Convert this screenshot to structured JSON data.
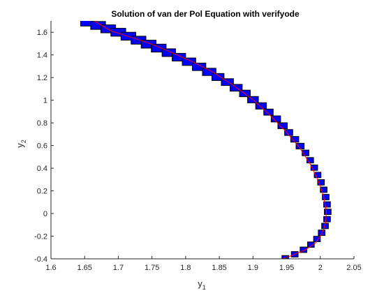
{
  "chart_data": {
    "type": "scatter",
    "title": "Solution of van der Pol Equation with verifyode",
    "xlabel": {
      "base": "y",
      "sub": "1"
    },
    "ylabel": {
      "base": "y",
      "sub": "2"
    },
    "xlim": [
      1.6,
      2.05
    ],
    "ylim": [
      -0.4,
      1.7
    ],
    "xticks": [
      "1.6",
      "1.65",
      "1.7",
      "1.75",
      "1.8",
      "1.85",
      "1.9",
      "1.95",
      "2",
      "2.05"
    ],
    "xtick_values": [
      1.6,
      1.65,
      1.7,
      1.75,
      1.8,
      1.85,
      1.9,
      1.95,
      2.0,
      2.05
    ],
    "yticks": [
      "-0.4",
      "-0.2",
      "0",
      "0.2",
      "0.4",
      "0.6",
      "0.8",
      "1",
      "1.2",
      "1.4",
      "1.6"
    ],
    "ytick_values": [
      -0.4,
      -0.2,
      0,
      0.2,
      0.4,
      0.6,
      0.8,
      1.0,
      1.2,
      1.4,
      1.6
    ],
    "grid": false,
    "colors": {
      "enclosure_fill": "#0000ff",
      "enclosure_edge": "#000000",
      "trajectory": "#ff0000",
      "axes": "#262626"
    },
    "series": [
      {
        "kind": "enclosure-boxes",
        "x": [
          1.655,
          1.67,
          1.685,
          1.7,
          1.715,
          1.73,
          1.745,
          1.76,
          1.775,
          1.79,
          1.805,
          1.82,
          1.835,
          1.848,
          1.862,
          1.875,
          1.888,
          1.9,
          1.912,
          1.923,
          1.934,
          1.944,
          1.953,
          1.962,
          1.97,
          1.978,
          1.985,
          1.991,
          1.996,
          2.001,
          2.005,
          2.008,
          2.01,
          2.011,
          2.01,
          2.007,
          2.002,
          1.995,
          1.986,
          1.975,
          1.962,
          1.948
        ],
        "y": [
          1.69,
          1.66,
          1.63,
          1.6,
          1.565,
          1.53,
          1.495,
          1.46,
          1.42,
          1.38,
          1.34,
          1.295,
          1.25,
          1.205,
          1.16,
          1.11,
          1.06,
          1.005,
          0.95,
          0.895,
          0.835,
          0.775,
          0.715,
          0.655,
          0.595,
          0.535,
          0.47,
          0.405,
          0.34,
          0.275,
          0.21,
          0.145,
          0.08,
          0.015,
          -0.05,
          -0.11,
          -0.17,
          -0.225,
          -0.275,
          -0.32,
          -0.36,
          -0.395
        ],
        "half_width": [
          0.011,
          0.011,
          0.011,
          0.011,
          0.011,
          0.011,
          0.011,
          0.011,
          0.01,
          0.01,
          0.01,
          0.01,
          0.01,
          0.009,
          0.009,
          0.009,
          0.008,
          0.008,
          0.008,
          0.007,
          0.007,
          0.007,
          0.006,
          0.006,
          0.006,
          0.005,
          0.005,
          0.005,
          0.005,
          0.005,
          0.005,
          0.005,
          0.005,
          0.005,
          0.005,
          0.005,
          0.005,
          0.005,
          0.005,
          0.005,
          0.005,
          0.005
        ],
        "half_height": [
          0.035,
          0.035,
          0.035,
          0.035,
          0.035,
          0.035,
          0.035,
          0.035,
          0.034,
          0.034,
          0.033,
          0.033,
          0.032,
          0.031,
          0.03,
          0.03,
          0.029,
          0.028,
          0.028,
          0.027,
          0.027,
          0.026,
          0.026,
          0.025,
          0.025,
          0.025,
          0.024,
          0.024,
          0.024,
          0.024,
          0.024,
          0.024,
          0.024,
          0.024,
          0.024,
          0.024,
          0.024,
          0.024,
          0.024,
          0.024,
          0.024,
          0.024
        ]
      },
      {
        "kind": "trajectory",
        "x": [
          1.664,
          1.69,
          1.72,
          1.75,
          1.78,
          1.81,
          1.84,
          1.87,
          1.9,
          1.925,
          1.95,
          1.97,
          1.985,
          1.997,
          2.005,
          2.009,
          2.008,
          2.003,
          1.993,
          1.978,
          1.958,
          1.944
        ],
        "y": [
          1.7,
          1.61,
          1.555,
          1.495,
          1.42,
          1.34,
          1.25,
          1.135,
          1.005,
          0.87,
          0.715,
          0.575,
          0.435,
          0.29,
          0.15,
          0.02,
          -0.08,
          -0.17,
          -0.26,
          -0.32,
          -0.37,
          -0.4
        ]
      }
    ]
  }
}
